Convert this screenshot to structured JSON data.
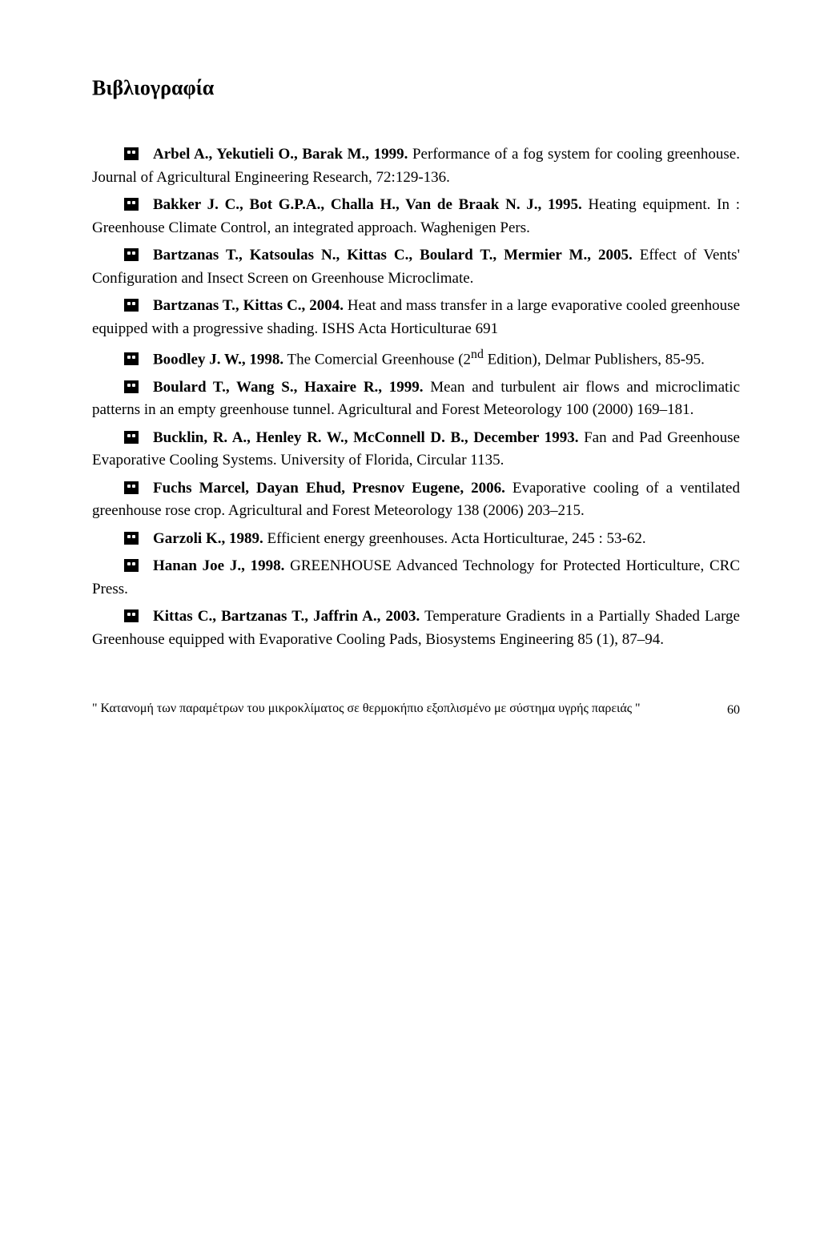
{
  "heading": "Βιβλιογραφία",
  "entries": [
    {
      "authors": "Arbel A., Yekutieli O., Barak M., 1999.",
      "text": " Performance of a fog system for cooling greenhouse. Journal of Agricultural Engineering Research, 72:129-136."
    },
    {
      "authors": "Bakker J. C., Bot G.P.A., Challa H., Van de Braak N. J., 1995.",
      "text": " Heating equipment. In : Greenhouse Climate Control, an integrated approach. Waghenigen Pers."
    },
    {
      "authors": "Bartzanas T., Katsoulas N., Kittas C., Boulard T., Mermier M., 2005.",
      "text": " Effect of Vents' Configuration and Insect Screen on Greenhouse Microclimate."
    },
    {
      "authors": "Bartzanas T., Kittas C., 2004.",
      "text": " Heat and mass transfer in a large evaporative cooled greenhouse equipped with a progressive shading. ISHS Acta Horticulturae 691"
    },
    {
      "authors": "Boodley J. W., 1998.",
      "text": " The Comercial Greenhouse (2",
      "sup": "nd",
      "text2": " Edition), Delmar Publishers, 85-95."
    },
    {
      "authors": "Boulard T., Wang S., Haxaire R., 1999.",
      "text": " Mean and turbulent air flows and microclimatic patterns in an empty greenhouse tunnel. Agricultural and Forest Meteorology 100 (2000) 169–181."
    },
    {
      "authors": "Bucklin, R. A., Henley R. W., McConnell D. B., December 1993.",
      "text": " Fan and Pad Greenhouse Evaporative Cooling Systems.  University of Florida, Circular 1135."
    },
    {
      "authors": "Fuchs Marcel, Dayan Ehud, Presnov Eugene, 2006.",
      "text": " Evaporative cooling of a ventilated greenhouse rose crop. Agricultural and Forest Meteorology 138 (2006) 203–215."
    },
    {
      "authors": "Garzoli K., 1989.",
      "text": " Efficient energy greenhouses. Acta Horticulturae, 245 : 53-62."
    },
    {
      "authors": "Hanan Joe J., 1998.",
      "text": " GREENHOUSE Advanced Technology for Protected Horticulture, CRC Press."
    },
    {
      "authors": "Kittas C., Bartzanas T., Jaffrin A., 2003.",
      "text": " Temperature Gradients in a Partially Shaded Large Greenhouse equipped with Evaporative Cooling Pads, Biosystems Engineering 85 (1), 87–94."
    }
  ],
  "footer_text": "\" Κατανομή των παραμέτρων του μικροκλίματος σε θερμοκήπιο εξοπλισμένο με σύστημα υγρής παρειάς \"",
  "page_number": "60"
}
